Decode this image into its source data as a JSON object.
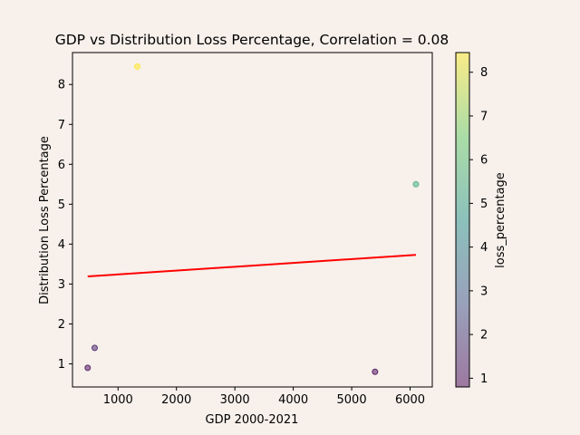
{
  "chart_data": {
    "type": "scatter",
    "title": "GDP vs Distribution Loss Percentage, Correlation = 0.08",
    "xlabel": "GDP 2000-2021",
    "ylabel": "Distribution Loss Percentage",
    "xlim": [
      220,
      6380
    ],
    "ylim": [
      0.42,
      8.8
    ],
    "x_ticks": [
      1000,
      2000,
      3000,
      4000,
      5000,
      6000
    ],
    "y_ticks": [
      1,
      2,
      3,
      4,
      5,
      6,
      7,
      8
    ],
    "grid": false,
    "points": [
      {
        "x": 480,
        "y": 0.9
      },
      {
        "x": 600,
        "y": 1.4
      },
      {
        "x": 1330,
        "y": 8.45
      },
      {
        "x": 5400,
        "y": 0.8
      },
      {
        "x": 6100,
        "y": 5.5
      }
    ],
    "trendline": {
      "color": "#ff0000",
      "x": [
        480,
        6100
      ],
      "y": [
        3.19,
        3.73
      ]
    },
    "colorbar": {
      "label": "loss_percentage",
      "range": [
        0.8,
        8.45
      ],
      "ticks": [
        1,
        2,
        3,
        4,
        5,
        6,
        7,
        8
      ],
      "colormap": "viridis"
    },
    "point_alpha": 0.5
  }
}
